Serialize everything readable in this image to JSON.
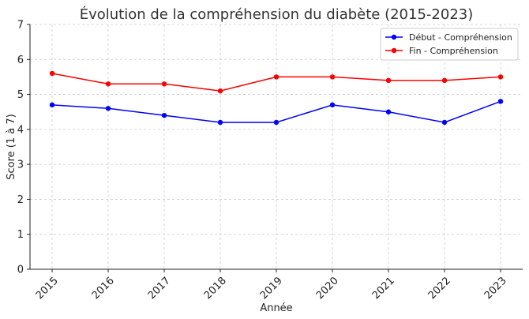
{
  "chart_data": {
    "type": "line",
    "title": "Évolution de la compréhension du diabète (2015-2023)",
    "xlabel": "Année",
    "ylabel": "Score (1 à 7)",
    "categories": [
      "2015",
      "2016",
      "2017",
      "2018",
      "2019",
      "2020",
      "2021",
      "2022",
      "2023"
    ],
    "ylim": [
      0,
      7
    ],
    "yticks": [
      "0",
      "1",
      "2",
      "3",
      "4",
      "5",
      "6",
      "7"
    ],
    "grid": true,
    "legend_position": "top-right",
    "series": [
      {
        "name": "Début - Compréhension",
        "color": "#0000ff",
        "values": [
          4.7,
          4.6,
          4.4,
          4.2,
          4.2,
          4.7,
          4.5,
          4.2,
          4.8
        ]
      },
      {
        "name": "Fin - Compréhension",
        "color": "#ff0000",
        "values": [
          5.6,
          5.3,
          5.3,
          5.1,
          5.5,
          5.5,
          5.4,
          5.4,
          5.5
        ]
      }
    ]
  }
}
